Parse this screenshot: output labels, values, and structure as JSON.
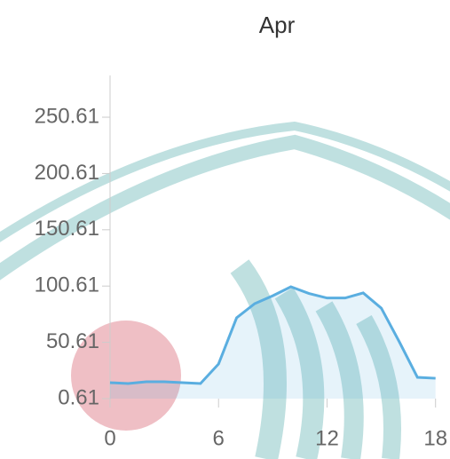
{
  "chart_data": {
    "type": "area",
    "title": "Apr",
    "x": [
      0,
      1,
      2,
      3,
      4,
      5,
      6,
      7,
      8,
      9,
      10,
      11,
      12,
      13,
      14,
      15,
      16,
      17,
      18
    ],
    "series": [
      {
        "name": null,
        "color": "#5aaee0",
        "values": [
          14.8,
          14,
          15.6,
          15.6,
          14.8,
          14,
          31.4,
          72.4,
          85,
          92,
          100,
          94,
          90,
          90,
          94.5,
          81,
          51,
          19.5,
          18.7
        ]
      }
    ],
    "xlim": [
      0,
      18.8
    ],
    "xticks": [
      0,
      6,
      12,
      18
    ],
    "ylim": [
      0.61,
      287.7
    ],
    "yticks": [
      0.61,
      50.61,
      100.61,
      150.61,
      200.61,
      250.61
    ]
  }
}
